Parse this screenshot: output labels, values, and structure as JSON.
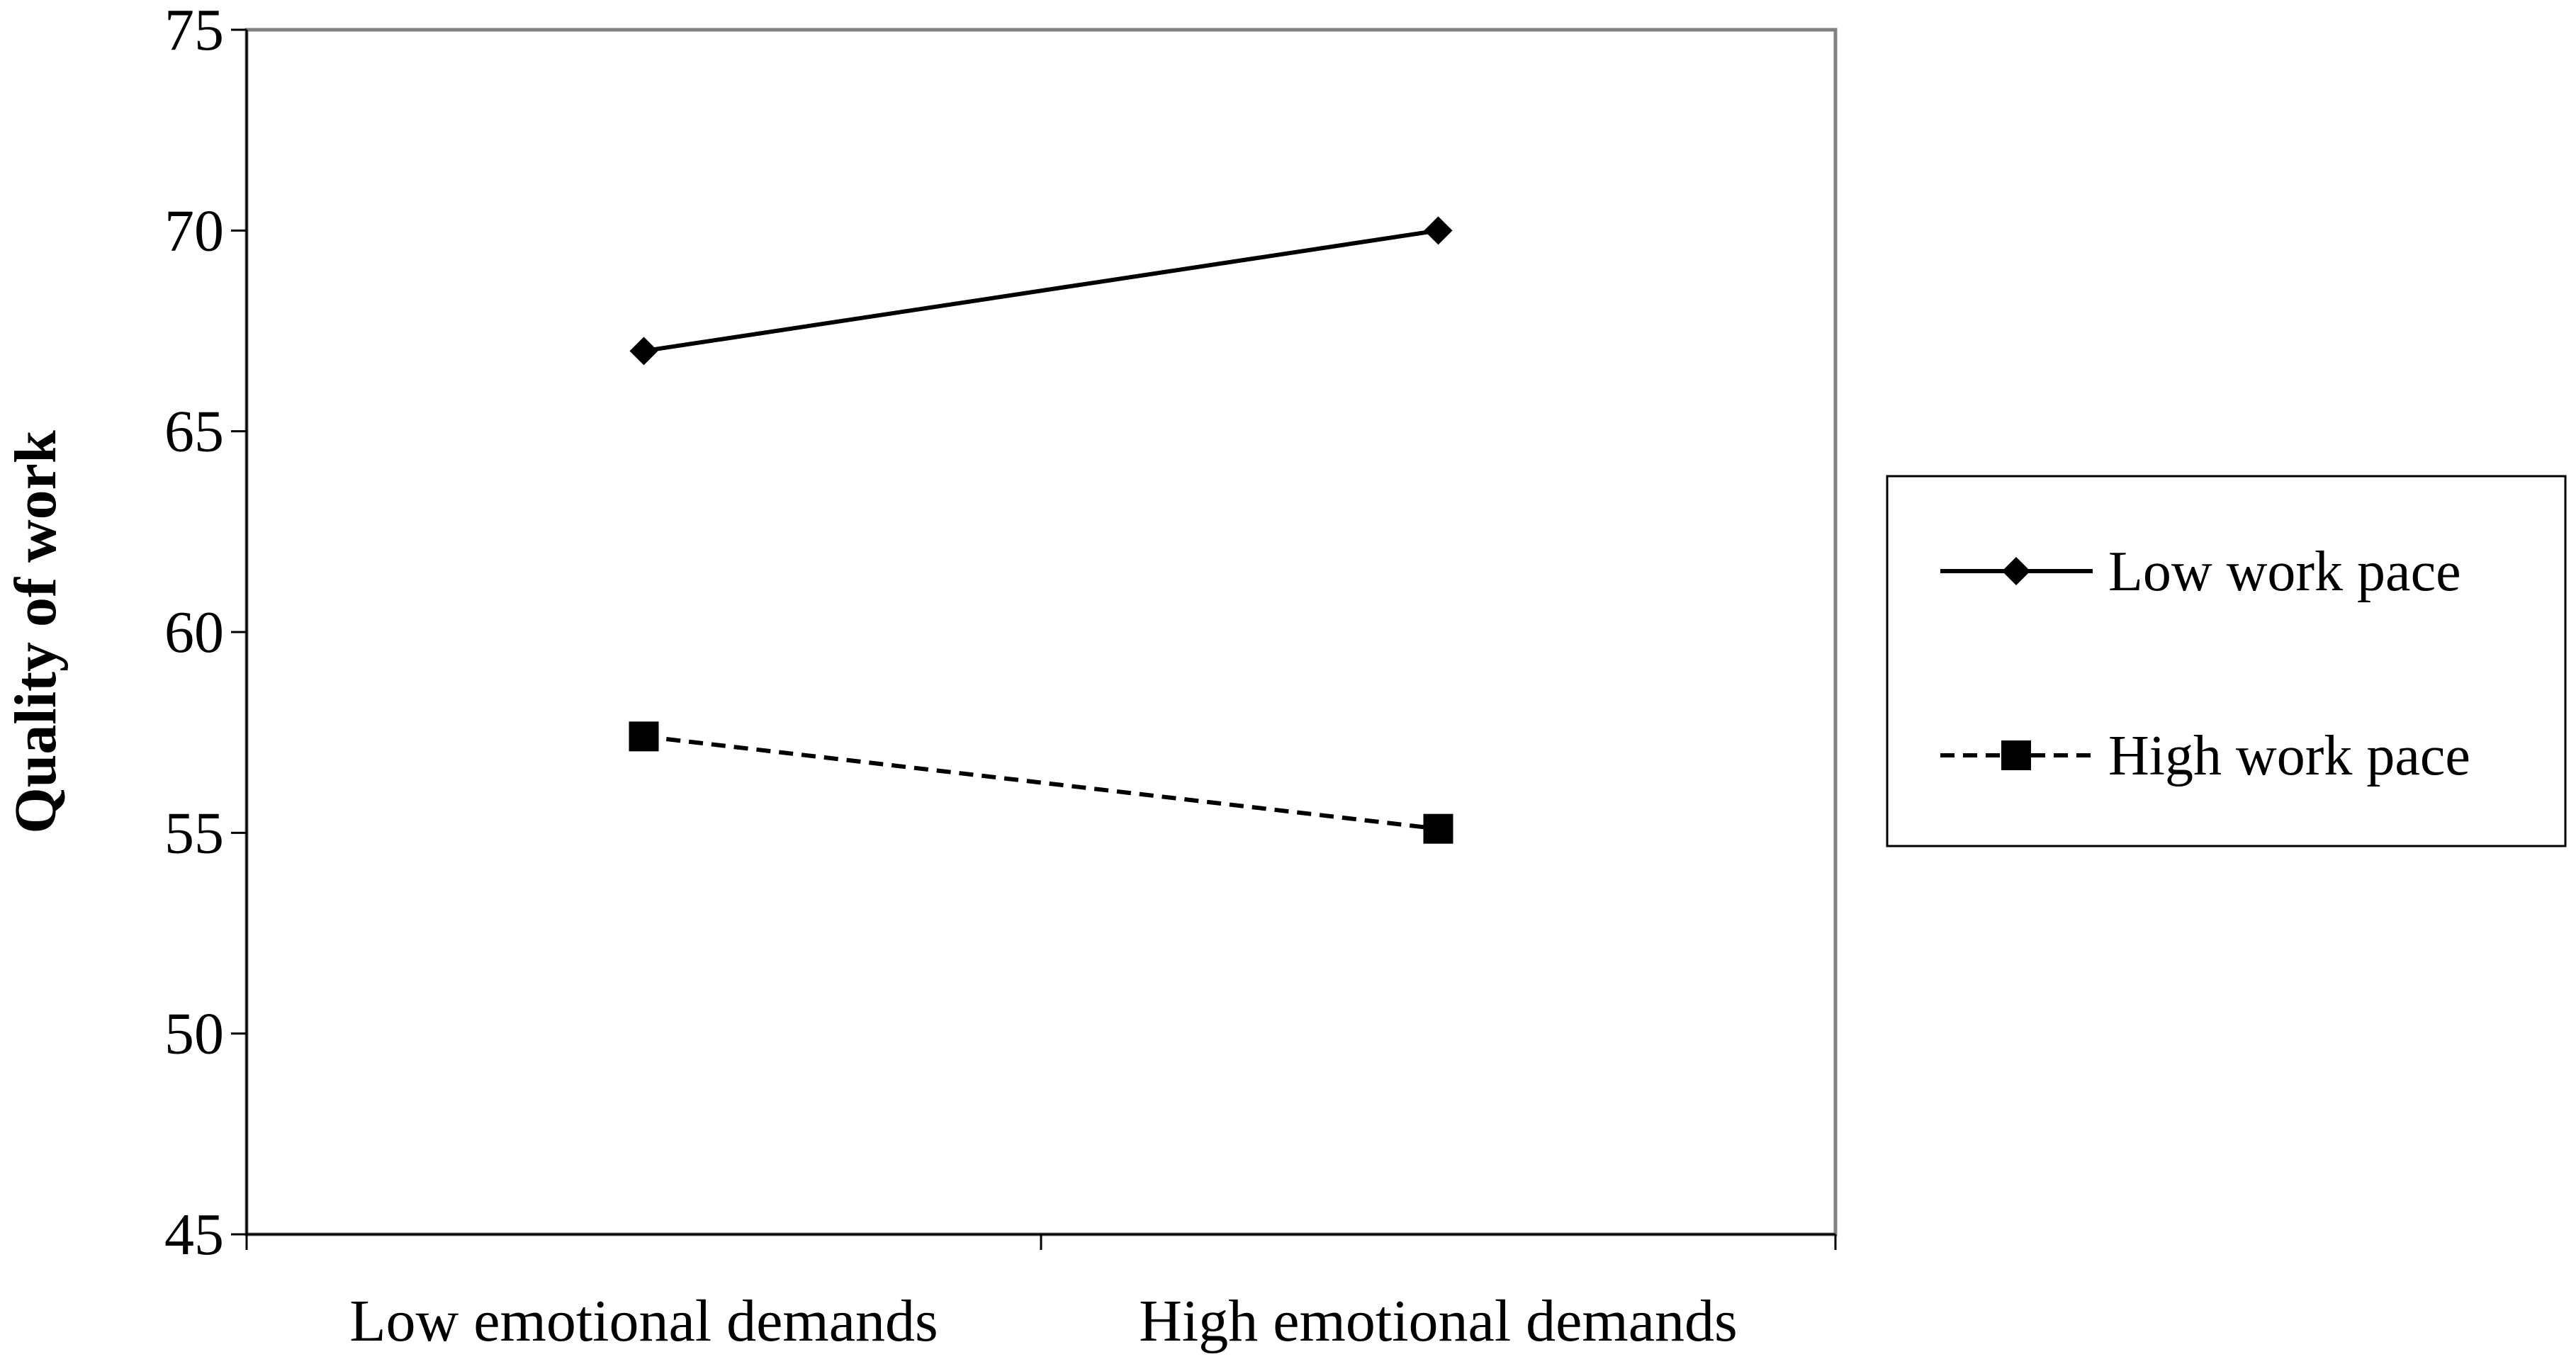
{
  "chart_data": {
    "type": "line",
    "title": "",
    "xlabel": "",
    "ylabel": "Quality of work",
    "categories": [
      "Low emotional demands",
      "High emotional demands"
    ],
    "ylim": [
      45,
      75
    ],
    "yticks": [
      45,
      50,
      55,
      60,
      65,
      70,
      75
    ],
    "grid": false,
    "legend_position": "right",
    "series": [
      {
        "name": "Low work pace",
        "values": [
          67.0,
          70.0
        ],
        "line_style": "solid",
        "marker": "diamond",
        "color": "#000000"
      },
      {
        "name": "High work pace",
        "values": [
          57.4,
          55.1
        ],
        "line_style": "dashed",
        "marker": "square",
        "color": "#000000"
      }
    ]
  }
}
